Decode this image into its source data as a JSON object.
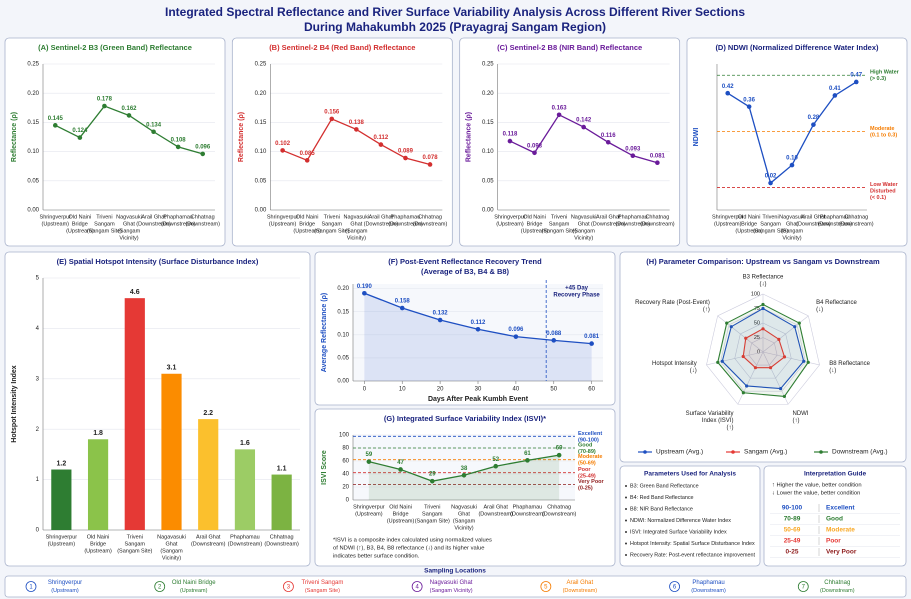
{
  "title": [
    "Integrated Spectral Reflectance and River Surface Variability Analysis Across Different River Sections",
    "During Mahakumbh 2025 (Prayagraj Sangam Region)"
  ],
  "chart_data": [
    {
      "type": "line",
      "title": "(A) Sentinel-2 B3 (Green Band) Reflectance",
      "title_color": "#2e7d32",
      "ylabel": "Reflectance (ρ)",
      "categories": [
        [
          "Shringverpur",
          "(Upstream)"
        ],
        [
          "Old Naini",
          "Bridge",
          "(Upstream)"
        ],
        [
          "Triveni",
          "Sangam",
          "(Sangam Site)"
        ],
        [
          "Nagvasuki",
          "Ghat",
          "(Sangam",
          "Vicinity)"
        ],
        [
          "Arail Ghat",
          "(Downstream)"
        ],
        [
          "Phaphamau",
          "(Downstream)"
        ],
        [
          "Chhatnag",
          "(Downstream)"
        ]
      ],
      "values": [
        0.145,
        0.124,
        0.178,
        0.162,
        0.134,
        0.108,
        0.096
      ],
      "color": "#2e7d32",
      "ylim": [
        0,
        0.25
      ],
      "yticks": [
        {
          "value": 0,
          "label": "0.00"
        },
        0.05,
        {
          "value": 0.1,
          "label": "0.10"
        },
        0.15,
        {
          "value": 0.2,
          "label": "0.20"
        },
        0.25
      ],
      "grid": true
    },
    {
      "type": "line",
      "title": "(B) Sentinel-2 B4 (Red Band) Reflectance",
      "title_color": "#d32f2f",
      "ylabel": "Reflectance (ρ)",
      "categories": [
        [
          "Shringverpur",
          "(Upstream)"
        ],
        [
          "Old Naini",
          "Bridge",
          "(Upstream)"
        ],
        [
          "Triveni",
          "Sangam",
          "(Sangam Site)"
        ],
        [
          "Nagvasuki",
          "Ghat",
          "(Sangam",
          "Vicinity)"
        ],
        [
          "Arail Ghat",
          "(Downstream)"
        ],
        [
          "Phaphamau",
          "(Downstream)"
        ],
        [
          "Chhatnag",
          "(Downstream)"
        ]
      ],
      "values": [
        0.102,
        0.085,
        0.156,
        0.138,
        0.112,
        0.089,
        0.078
      ],
      "color": "#d32f2f",
      "ylim": [
        0,
        0.25
      ],
      "yticks": [
        {
          "value": 0,
          "label": "0.00"
        },
        0.05,
        {
          "value": 0.1,
          "label": "0.10"
        },
        0.15,
        {
          "value": 0.2,
          "label": "0.20"
        },
        0.25
      ],
      "grid": true
    },
    {
      "type": "line",
      "title": "(C) Sentinel-2 B8 (NIR Band) Reflectance",
      "title_color": "#6a1b9a",
      "ylabel": "Reflectance (ρ)",
      "categories": [
        [
          "Shringverpur",
          "(Upstream)"
        ],
        [
          "Old Naini",
          "Bridge",
          "(Upstream)"
        ],
        [
          "Triveni",
          "Sangam",
          "(Sangam Site)"
        ],
        [
          "Nagvasuki",
          "Ghat",
          "(Sangam",
          "Vicinity)"
        ],
        [
          "Arail Ghat",
          "(Downstream)"
        ],
        [
          "Phaphamau",
          "(Downstream)"
        ],
        [
          "Chhatnag",
          "(Downstream)"
        ]
      ],
      "values": [
        0.118,
        0.098,
        0.163,
        0.142,
        0.116,
        0.093,
        0.081
      ],
      "color": "#6a1b9a",
      "ylim": [
        0,
        0.25
      ],
      "yticks": [
        {
          "value": 0,
          "label": "0.00"
        },
        0.05,
        {
          "value": 0.1,
          "label": "0.10"
        },
        0.15,
        {
          "value": 0.2,
          "label": "0.20"
        },
        0.25
      ],
      "grid": true
    },
    {
      "type": "line",
      "title": "(D) NDWI (Normalized Difference Water Index)",
      "title_color": "#1a237e",
      "ylabel": "NDWI",
      "categories": [
        [
          "Shringverpur",
          "(Upstream)"
        ],
        [
          "Old Naini",
          "Bridge",
          "(Upstream)"
        ],
        [
          "Triveni",
          "Sangam",
          "(Sangam Site)"
        ],
        [
          "Nagvasuki",
          "Ghat",
          "(Sangam",
          "Vicinity)"
        ],
        [
          "Arail Ghat",
          "(Downstream)"
        ],
        [
          "Phaphamau",
          "(Downstream)"
        ],
        [
          "Chhatnag",
          "(Downstream)"
        ]
      ],
      "values": [
        0.42,
        0.36,
        0.02,
        0.1,
        0.28,
        0.41,
        0.47
      ],
      "value_labels": [
        "0.42",
        "0.36",
        "0.02",
        "0.10",
        "0.28",
        "0.41",
        "0.47"
      ],
      "color": "#1e4fc2",
      "ylim": [
        -0.1,
        0.55
      ],
      "thresholds": [
        {
          "value": 0.5,
          "label": [
            "High Water",
            "(> 0.3)"
          ],
          "color": "#2e7d32"
        },
        {
          "value": 0.25,
          "label": [
            "Moderate",
            "(0.1 to 0.3)"
          ],
          "color": "#f57c00"
        },
        {
          "value": 0,
          "label": [
            "Low Water",
            "Disturbed",
            "(< 0.1)"
          ],
          "color": "#d32f2f"
        }
      ]
    },
    {
      "type": "bar",
      "title": "(E) Spatial Hotspot Intensity (Surface Disturbance Index)",
      "title_color": "#1a237e",
      "ylabel": "Hotspot Intensity Index",
      "categories": [
        [
          "Shringverpur",
          "(Upstream)"
        ],
        [
          "Old Naini",
          "Bridge",
          "(Upstream)"
        ],
        [
          "Triveni",
          "Sangam",
          "(Sangam Site)"
        ],
        [
          "Nagavasuki",
          "Ghat",
          "(Sangam",
          "Vicinity)"
        ],
        [
          "Arail Ghat",
          "(Downstream)"
        ],
        [
          "Phaphamau",
          "(Downstream)"
        ],
        [
          "Chhatnag",
          "(Downstream)"
        ]
      ],
      "values": [
        1.2,
        1.8,
        4.6,
        3.1,
        2.2,
        1.6,
        1.1
      ],
      "colors": [
        "#2e7d32",
        "#8bc34a",
        "#e53935",
        "#fb8c00",
        "#fbc02d",
        "#9ccc65",
        "#7cb342"
      ],
      "ylim": [
        0,
        5
      ],
      "yticks": [
        0,
        1,
        2,
        3,
        4,
        5
      ],
      "grid": true
    },
    {
      "type": "line",
      "title": "(F) Post-Event Reflectance Recovery Trend",
      "subtitle": "(Average of B3, B4 & B8)",
      "title_color": "#1a237e",
      "ylabel": "Average Reflectance (ρ)",
      "xlabel": "Days After Peak Kumbh Event",
      "x": [
        0,
        10,
        20,
        30,
        40,
        50,
        60
      ],
      "values": [
        0.19,
        0.158,
        0.132,
        0.112,
        0.096,
        0.088,
        0.081
      ],
      "value_labels": [
        "0.190",
        "0.158",
        "0.132",
        "0.112",
        "0.096",
        "0.088",
        "0.081"
      ],
      "color": "#1e4fc2",
      "area": true,
      "xlim": [
        -3,
        63
      ],
      "xticks": [
        0,
        10,
        20,
        30,
        40,
        50,
        60
      ],
      "ylim": [
        0,
        0.21
      ],
      "yticks": [
        {
          "value": 0,
          "label": "0.00"
        },
        0.05,
        {
          "value": 0.1,
          "label": "0.10"
        },
        0.15,
        {
          "value": 0.2,
          "label": "0.20"
        }
      ],
      "grid": true,
      "markers": [
        {
          "x": 48,
          "label": [
            "+45 Day",
            "Recovery Phase"
          ]
        }
      ]
    },
    {
      "type": "line",
      "title": "(G) Integrated Surface Variability Index (ISVI)*",
      "title_color": "#1a237e",
      "ylabel": "ISVI Score",
      "categories": [
        [
          "Shringverpur",
          "(Upstream)"
        ],
        [
          "Old Naini",
          "Bridge",
          "(Upstream)"
        ],
        [
          "Triveni",
          "Sangam",
          "(Sangam Site)"
        ],
        [
          "Nagvasuki",
          "Ghat",
          "(Sangam",
          "Vicinity)"
        ],
        [
          "Arail Ghat",
          "(Downstream)"
        ],
        [
          "Phaphamau",
          "(Downstream)"
        ],
        [
          "Chhatnag",
          "(Downstream)"
        ]
      ],
      "values": [
        59,
        47,
        29,
        38,
        52,
        61,
        69
      ],
      "color": "#2e7d32",
      "area": true,
      "ylim": [
        0,
        100
      ],
      "yticks": [
        0,
        20,
        40,
        60,
        80,
        100
      ],
      "grid": true,
      "thresholds": [
        {
          "value": 98,
          "label": [
            "Excellent",
            "(90-100)"
          ],
          "color": "#1e4fc2"
        },
        {
          "value": 80,
          "label": [
            "Good",
            "(70-89)"
          ],
          "color": "#2e7d32"
        },
        {
          "value": 62,
          "label": [
            "Moderate",
            "(50-69)"
          ],
          "color": "#f57c00"
        },
        {
          "value": 42,
          "label": [
            "Poor",
            "(25-49)"
          ],
          "color": "#d32f2f"
        },
        {
          "value": 24,
          "label": [
            "Very Poor",
            "(0-25)"
          ],
          "color": "#8e1b1b"
        }
      ],
      "note": [
        "*ISVI is a composite index calculated using normalized values",
        "of NDWI (↑), B3, B4, B8 reflectance (↓) and its higher value",
        "indicates better surface condition."
      ]
    },
    {
      "type": "radar",
      "title": "(H) Parameter Comparison: Upstream vs Sangam vs Downstream",
      "title_color": "#1a237e",
      "axes": [
        [
          "B3 Reflectance",
          "(↓)"
        ],
        [
          "B4 Reflectance",
          "(↓)"
        ],
        [
          "B8 Reflectance",
          "(↓)"
        ],
        [
          "NDWI",
          "(↑)"
        ],
        [
          "Surface Variability",
          "Index (ISVI)",
          "(↑)"
        ],
        [
          "Hotspot Intensity",
          "(↓)"
        ],
        [
          "Recovery Rate (Post-Event)",
          "(↑)"
        ]
      ],
      "rlim": [
        0,
        100
      ],
      "rticks": [
        0,
        25,
        50,
        75,
        100
      ],
      "series": [
        {
          "name": "Upstream (Avg.)",
          "color": "#1e4fc2",
          "values": [
            75,
            70,
            72,
            70,
            65,
            72,
            70
          ]
        },
        {
          "name": "Sangam (Avg.)",
          "color": "#e53935",
          "values": [
            40,
            35,
            38,
            30,
            30,
            35,
            38
          ]
        },
        {
          "name": "Downstream (Avg.)",
          "color": "#2e7d32",
          "values": [
            82,
            80,
            80,
            85,
            78,
            80,
            80
          ]
        }
      ]
    }
  ],
  "parameters": {
    "title": "Parameters Used for Analysis",
    "items": [
      "B3: Green Band Reflectance",
      "B4: Red Band Reflectance",
      "B8: NIR Band Reflectance",
      "NDWI: Normalized Difference Water Index",
      "ISVI: Integrated Surface Variability Index",
      "Hotspot Intensity: Spatial Surface Disturbance Index",
      "Recovery Rate: Post-event reflectance improvement"
    ]
  },
  "guide": {
    "title": "Interpretation Guide",
    "notes": [
      "↑ Higher the value, better condition",
      "↓ Lower the value, better condition"
    ],
    "rows": [
      {
        "range": "90-100",
        "label": "Excellent",
        "color": "#1e4fc2"
      },
      {
        "range": "70-89",
        "label": "Good",
        "color": "#2e7d32"
      },
      {
        "range": "50-69",
        "label": "Moderate",
        "color": "#f9a825"
      },
      {
        "range": "25-49",
        "label": "Poor",
        "color": "#e53935"
      },
      {
        "range": "0-25",
        "label": "Very Poor",
        "color": "#8e1b1b"
      }
    ]
  },
  "sampling_locations": {
    "title": "Sampling Locations",
    "items": [
      {
        "number": 1,
        "name": "Shringverpur",
        "role": "(Upstream)",
        "color": "#1e4fc2"
      },
      {
        "number": 2,
        "name": "Old Naini Bridge",
        "role": "(Upstream)",
        "color": "#2e7d32"
      },
      {
        "number": 3,
        "name": "Triveni Sangam",
        "role": "(Sangam Site)",
        "color": "#e53935"
      },
      {
        "number": 4,
        "name": "Nagvasuki Ghat",
        "role": "(Sangam Vicinity)",
        "color": "#6a1b9a"
      },
      {
        "number": 5,
        "name": "Arail Ghat",
        "role": "(Downstream)",
        "color": "#f57c00"
      },
      {
        "number": 6,
        "name": "Phaphamau",
        "role": "(Downstream)",
        "color": "#1e4fc2"
      },
      {
        "number": 7,
        "name": "Chhatnag",
        "role": "(Downstream)",
        "color": "#2e7d32"
      }
    ]
  }
}
